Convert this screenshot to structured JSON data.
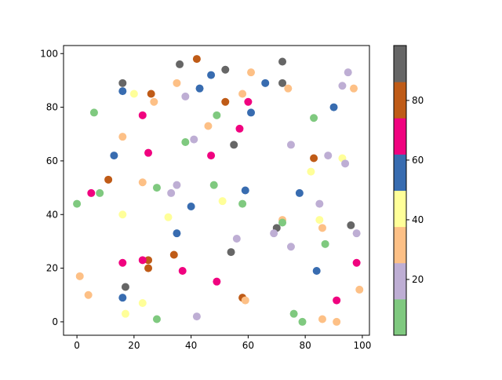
{
  "chart_data": {
    "type": "scatter",
    "title": "",
    "xlabel": "",
    "ylabel": "",
    "xlim": [
      -4.7,
      102.5
    ],
    "ylim": [
      -5,
      103
    ],
    "xticks": [
      "0",
      "20",
      "40",
      "60",
      "80",
      "100"
    ],
    "yticks": [
      "0",
      "20",
      "40",
      "60",
      "80",
      "100"
    ],
    "grid": false,
    "colormap": "Accent",
    "colormap_colors": [
      "#7fc97f",
      "#beaed4",
      "#fdc086",
      "#ffff99",
      "#386cb0",
      "#f0027f",
      "#bf5b17",
      "#666666"
    ],
    "colorbar": {
      "range": [
        1.3,
        98.4
      ],
      "ticks": [
        "20",
        "40",
        "60",
        "80"
      ]
    },
    "points": [
      [
        42,
        98,
        80
      ],
      [
        36,
        96,
        92
      ],
      [
        72,
        97,
        92
      ],
      [
        52,
        94,
        92
      ],
      [
        47,
        92,
        56
      ],
      [
        61,
        93,
        31
      ],
      [
        95,
        93,
        19
      ],
      [
        16,
        89,
        92
      ],
      [
        35,
        89,
        31
      ],
      [
        66,
        89,
        56
      ],
      [
        72,
        89,
        92
      ],
      [
        93,
        88,
        19
      ],
      [
        97,
        87,
        31
      ],
      [
        74,
        87,
        31
      ],
      [
        43,
        87,
        56
      ],
      [
        16,
        86,
        56
      ],
      [
        20,
        85,
        44
      ],
      [
        26,
        85,
        80
      ],
      [
        58,
        85,
        31
      ],
      [
        38,
        84,
        19
      ],
      [
        27,
        82,
        31
      ],
      [
        52,
        82,
        80
      ],
      [
        60,
        82,
        68
      ],
      [
        90,
        80,
        56
      ],
      [
        6,
        78,
        7
      ],
      [
        61,
        78,
        56
      ],
      [
        23,
        77,
        68
      ],
      [
        49,
        77,
        7
      ],
      [
        83,
        76,
        7
      ],
      [
        46,
        73,
        31
      ],
      [
        57,
        72,
        68
      ],
      [
        16,
        69,
        31
      ],
      [
        41,
        68,
        19
      ],
      [
        38,
        67,
        7
      ],
      [
        55,
        66,
        92
      ],
      [
        75,
        66,
        19
      ],
      [
        25,
        63,
        68
      ],
      [
        13,
        62,
        56
      ],
      [
        47,
        62,
        68
      ],
      [
        88,
        62,
        19
      ],
      [
        83,
        61,
        80
      ],
      [
        93,
        61,
        44
      ],
      [
        94,
        59,
        19
      ],
      [
        82,
        56,
        44
      ],
      [
        11,
        53,
        80
      ],
      [
        23,
        52,
        31
      ],
      [
        35,
        51,
        19
      ],
      [
        48,
        51,
        7
      ],
      [
        28,
        50,
        7
      ],
      [
        59,
        49,
        56
      ],
      [
        33,
        48,
        19
      ],
      [
        5,
        48,
        68
      ],
      [
        8,
        48,
        7
      ],
      [
        78,
        48,
        56
      ],
      [
        51,
        45,
        44
      ],
      [
        0,
        44,
        7
      ],
      [
        58,
        44,
        7
      ],
      [
        85,
        44,
        19
      ],
      [
        40,
        43,
        56
      ],
      [
        16,
        40,
        44
      ],
      [
        32,
        39,
        44
      ],
      [
        72,
        38,
        31
      ],
      [
        85,
        38,
        44
      ],
      [
        72,
        37,
        7
      ],
      [
        96,
        36,
        92
      ],
      [
        70,
        35,
        92
      ],
      [
        86,
        35,
        31
      ],
      [
        69,
        33,
        19
      ],
      [
        35,
        33,
        56
      ],
      [
        98,
        33,
        19
      ],
      [
        56,
        31,
        19
      ],
      [
        87,
        29,
        7
      ],
      [
        75,
        28,
        19
      ],
      [
        54,
        26,
        92
      ],
      [
        34,
        25,
        80
      ],
      [
        25,
        23,
        80
      ],
      [
        23,
        23,
        68
      ],
      [
        16,
        22,
        68
      ],
      [
        98,
        22,
        68
      ],
      [
        25,
        20,
        80
      ],
      [
        37,
        19,
        68
      ],
      [
        84,
        19,
        56
      ],
      [
        1,
        17,
        31
      ],
      [
        49,
        15,
        68
      ],
      [
        17,
        13,
        92
      ],
      [
        99,
        12,
        31
      ],
      [
        4,
        10,
        31
      ],
      [
        16,
        9,
        56
      ],
      [
        58,
        9,
        80
      ],
      [
        91,
        8,
        68
      ],
      [
        59,
        8,
        31
      ],
      [
        23,
        7,
        44
      ],
      [
        76,
        3,
        7
      ],
      [
        17,
        3,
        44
      ],
      [
        42,
        2,
        19
      ],
      [
        28,
        1,
        7
      ],
      [
        86,
        1,
        31
      ],
      [
        79,
        0,
        7
      ],
      [
        91,
        0,
        31
      ]
    ]
  }
}
